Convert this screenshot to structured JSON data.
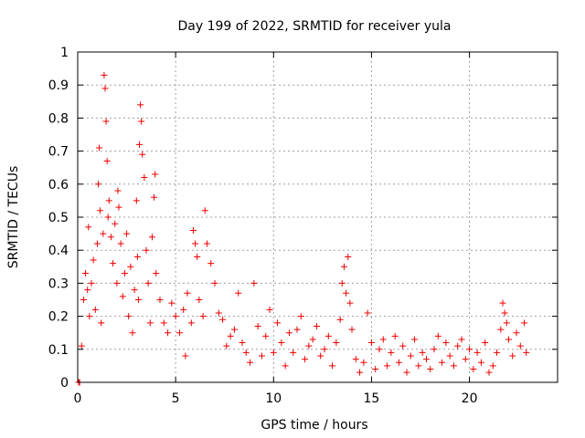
{
  "chart_data": {
    "type": "scatter",
    "title": "Day 199 of 2022, SRMTID for receiver yula",
    "xlabel": "GPS time / hours",
    "ylabel": "SRMTID / TECUs",
    "xlim": [
      0,
      24.5
    ],
    "ylim": [
      0,
      1
    ],
    "x_ticks": [
      0,
      5,
      10,
      15,
      20
    ],
    "x_tick_labels": [
      "0",
      "5",
      "10",
      "15",
      "20"
    ],
    "y_ticks": [
      0,
      0.1,
      0.2,
      0.3,
      0.4,
      0.5,
      0.6,
      0.7,
      0.8,
      0.9,
      1
    ],
    "y_tick_labels": [
      "0",
      "0.1",
      "0.2",
      "0.3",
      "0.4",
      "0.5",
      "0.6",
      "0.7",
      "0.8",
      "0.9",
      "1"
    ],
    "grid": true,
    "marker": "+",
    "color": "#ee0000",
    "series": [
      {
        "name": "SRMTID",
        "points": [
          [
            0.05,
            0.0
          ],
          [
            0.1,
            0.0
          ],
          [
            0.2,
            0.11
          ],
          [
            0.3,
            0.25
          ],
          [
            0.4,
            0.33
          ],
          [
            0.5,
            0.28
          ],
          [
            0.55,
            0.47
          ],
          [
            0.6,
            0.2
          ],
          [
            0.7,
            0.3
          ],
          [
            0.8,
            0.37
          ],
          [
            0.9,
            0.22
          ],
          [
            1.0,
            0.42
          ],
          [
            1.05,
            0.6
          ],
          [
            1.1,
            0.71
          ],
          [
            1.15,
            0.52
          ],
          [
            1.2,
            0.18
          ],
          [
            1.3,
            0.45
          ],
          [
            1.35,
            0.93
          ],
          [
            1.4,
            0.89
          ],
          [
            1.45,
            0.79
          ],
          [
            1.5,
            0.67
          ],
          [
            1.55,
            0.5
          ],
          [
            1.6,
            0.55
          ],
          [
            1.7,
            0.44
          ],
          [
            1.8,
            0.36
          ],
          [
            1.9,
            0.48
          ],
          [
            2.0,
            0.3
          ],
          [
            2.05,
            0.58
          ],
          [
            2.1,
            0.53
          ],
          [
            2.2,
            0.42
          ],
          [
            2.3,
            0.26
          ],
          [
            2.4,
            0.33
          ],
          [
            2.5,
            0.45
          ],
          [
            2.6,
            0.2
          ],
          [
            2.7,
            0.35
          ],
          [
            2.8,
            0.15
          ],
          [
            2.9,
            0.28
          ],
          [
            3.0,
            0.55
          ],
          [
            3.05,
            0.38
          ],
          [
            3.1,
            0.25
          ],
          [
            3.15,
            0.72
          ],
          [
            3.2,
            0.84
          ],
          [
            3.25,
            0.79
          ],
          [
            3.3,
            0.69
          ],
          [
            3.4,
            0.62
          ],
          [
            3.5,
            0.4
          ],
          [
            3.6,
            0.3
          ],
          [
            3.7,
            0.18
          ],
          [
            3.8,
            0.44
          ],
          [
            3.9,
            0.56
          ],
          [
            3.95,
            0.63
          ],
          [
            4.0,
            0.33
          ],
          [
            4.2,
            0.25
          ],
          [
            4.4,
            0.18
          ],
          [
            4.6,
            0.15
          ],
          [
            4.8,
            0.24
          ],
          [
            5.0,
            0.2
          ],
          [
            5.2,
            0.15
          ],
          [
            5.4,
            0.22
          ],
          [
            5.5,
            0.08
          ],
          [
            5.6,
            0.27
          ],
          [
            5.8,
            0.18
          ],
          [
            5.9,
            0.46
          ],
          [
            6.0,
            0.42
          ],
          [
            6.1,
            0.38
          ],
          [
            6.2,
            0.25
          ],
          [
            6.4,
            0.2
          ],
          [
            6.5,
            0.52
          ],
          [
            6.6,
            0.42
          ],
          [
            6.8,
            0.36
          ],
          [
            7.0,
            0.3
          ],
          [
            7.2,
            0.21
          ],
          [
            7.4,
            0.19
          ],
          [
            7.6,
            0.11
          ],
          [
            7.8,
            0.14
          ],
          [
            8.0,
            0.16
          ],
          [
            8.2,
            0.27
          ],
          [
            8.4,
            0.12
          ],
          [
            8.6,
            0.09
          ],
          [
            8.8,
            0.06
          ],
          [
            9.0,
            0.3
          ],
          [
            9.2,
            0.17
          ],
          [
            9.4,
            0.08
          ],
          [
            9.6,
            0.14
          ],
          [
            9.8,
            0.22
          ],
          [
            10.0,
            0.09
          ],
          [
            10.2,
            0.18
          ],
          [
            10.4,
            0.12
          ],
          [
            10.6,
            0.05
          ],
          [
            10.8,
            0.15
          ],
          [
            11.0,
            0.09
          ],
          [
            11.2,
            0.16
          ],
          [
            11.4,
            0.2
          ],
          [
            11.6,
            0.07
          ],
          [
            11.8,
            0.11
          ],
          [
            12.0,
            0.13
          ],
          [
            12.2,
            0.17
          ],
          [
            12.4,
            0.08
          ],
          [
            12.6,
            0.1
          ],
          [
            12.8,
            0.14
          ],
          [
            13.0,
            0.05
          ],
          [
            13.2,
            0.12
          ],
          [
            13.4,
            0.19
          ],
          [
            13.5,
            0.3
          ],
          [
            13.6,
            0.35
          ],
          [
            13.7,
            0.27
          ],
          [
            13.8,
            0.38
          ],
          [
            13.9,
            0.24
          ],
          [
            14.0,
            0.16
          ],
          [
            14.2,
            0.07
          ],
          [
            14.4,
            0.03
          ],
          [
            14.6,
            0.06
          ],
          [
            14.8,
            0.21
          ],
          [
            15.0,
            0.12
          ],
          [
            15.2,
            0.04
          ],
          [
            15.4,
            0.1
          ],
          [
            15.6,
            0.13
          ],
          [
            15.8,
            0.05
          ],
          [
            16.0,
            0.09
          ],
          [
            16.2,
            0.14
          ],
          [
            16.4,
            0.06
          ],
          [
            16.6,
            0.11
          ],
          [
            16.8,
            0.03
          ],
          [
            17.0,
            0.08
          ],
          [
            17.2,
            0.13
          ],
          [
            17.4,
            0.05
          ],
          [
            17.6,
            0.09
          ],
          [
            17.8,
            0.07
          ],
          [
            18.0,
            0.04
          ],
          [
            18.2,
            0.1
          ],
          [
            18.4,
            0.14
          ],
          [
            18.6,
            0.06
          ],
          [
            18.8,
            0.12
          ],
          [
            19.0,
            0.08
          ],
          [
            19.2,
            0.05
          ],
          [
            19.4,
            0.11
          ],
          [
            19.6,
            0.13
          ],
          [
            19.8,
            0.07
          ],
          [
            20.0,
            0.1
          ],
          [
            20.2,
            0.04
          ],
          [
            20.4,
            0.09
          ],
          [
            20.6,
            0.06
          ],
          [
            20.8,
            0.12
          ],
          [
            21.0,
            0.03
          ],
          [
            21.2,
            0.05
          ],
          [
            21.4,
            0.09
          ],
          [
            21.6,
            0.16
          ],
          [
            21.7,
            0.24
          ],
          [
            21.8,
            0.21
          ],
          [
            21.9,
            0.18
          ],
          [
            22.0,
            0.13
          ],
          [
            22.2,
            0.08
          ],
          [
            22.4,
            0.15
          ],
          [
            22.6,
            0.11
          ],
          [
            22.8,
            0.18
          ],
          [
            22.9,
            0.09
          ]
        ]
      }
    ]
  }
}
